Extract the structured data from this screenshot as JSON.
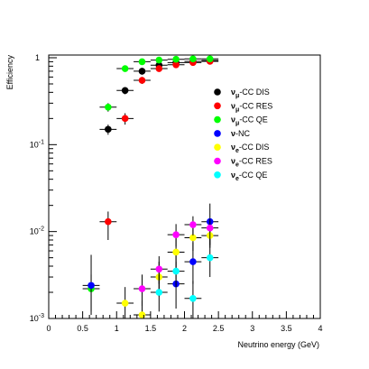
{
  "chart_data": {
    "type": "scatter",
    "title": "",
    "xlabel": "Neutrino energy (GeV)",
    "ylabel": "Efficiency",
    "xlim": [
      0,
      4
    ],
    "ylim": [
      0.001,
      1.3
    ],
    "yscale": "log",
    "grid": false,
    "legend_position": "upper-right",
    "x_ticks": [
      {
        "value": 0,
        "label": "0"
      },
      {
        "value": 0.5,
        "label": "0.5"
      },
      {
        "value": 1,
        "label": "1"
      },
      {
        "value": 1.5,
        "label": "1.5"
      },
      {
        "value": 2,
        "label": "2"
      },
      {
        "value": 2.5,
        "label": "2.5"
      },
      {
        "value": 3,
        "label": "3"
      },
      {
        "value": 3.5,
        "label": "3.5"
      },
      {
        "value": 4,
        "label": "4"
      }
    ],
    "y_ticks": [
      {
        "value": 1,
        "base": "1",
        "exp": ""
      },
      {
        "value": 0.1,
        "base": "10",
        "exp": "-1"
      },
      {
        "value": 0.01,
        "base": "10",
        "exp": "-2"
      },
      {
        "value": 0.001,
        "base": "10",
        "exp": "-3"
      }
    ],
    "series": [
      {
        "name": "ν_μ-CC DIS",
        "label_main": "ν",
        "label_sub": "μ",
        "label_rest": "-CC DIS",
        "color": "#000000",
        "x": [
          0.875,
          1.125,
          1.375,
          1.625,
          1.875,
          2.125,
          2.375
        ],
        "y": [
          0.15,
          0.42,
          0.7,
          0.82,
          0.88,
          0.91,
          0.93
        ],
        "xerr": 0.125,
        "yerr_lo": [
          0.02,
          0.04,
          0.06,
          0.05,
          0.05,
          0.04,
          0.04
        ],
        "yerr_hi": [
          0.02,
          0.04,
          0.06,
          0.05,
          0.05,
          0.04,
          0.04
        ]
      },
      {
        "name": "ν_μ-CC RES",
        "label_main": "ν",
        "label_sub": "μ",
        "label_rest": "-CC RES",
        "color": "#ff0000",
        "x": [
          0.875,
          1.125,
          1.375,
          1.625,
          1.875,
          2.125,
          2.375
        ],
        "y": [
          0.013,
          0.2,
          0.55,
          0.75,
          0.83,
          0.88,
          0.91
        ],
        "xerr": 0.125,
        "yerr_lo": [
          0.005,
          0.03,
          0.05,
          0.05,
          0.05,
          0.04,
          0.04
        ],
        "yerr_hi": [
          0.004,
          0.03,
          0.05,
          0.05,
          0.05,
          0.04,
          0.04
        ]
      },
      {
        "name": "ν_μ-CC QE",
        "label_main": "ν",
        "label_sub": "μ",
        "label_rest": "-CC QE",
        "color": "#00ff00",
        "x": [
          0.625,
          0.875,
          1.125,
          1.375,
          1.625,
          1.875,
          2.125,
          2.375
        ],
        "y": [
          0.0022,
          0.27,
          0.75,
          0.9,
          0.94,
          0.96,
          0.97,
          0.97
        ],
        "xerr": 0.125,
        "yerr_lo": [
          0.001,
          0.03,
          0.05,
          0.04,
          0.03,
          0.03,
          0.03,
          0.03
        ],
        "yerr_hi": [
          0.001,
          0.03,
          0.05,
          0.04,
          0.03,
          0.03,
          0.03,
          0.03
        ]
      },
      {
        "name": "ν-NC",
        "label_main": "ν",
        "label_sub": "",
        "label_rest": "-NC",
        "color": "#0000ff",
        "x": [
          0.625,
          1.875,
          2.125,
          2.375
        ],
        "y": [
          0.0024,
          0.0025,
          0.0045,
          0.013
        ],
        "xerr": 0.125,
        "yerr_lo": [
          0.0013,
          0.0012,
          0.002,
          0.006
        ],
        "yerr_hi": [
          0.003,
          0.002,
          0.003,
          0.008
        ]
      },
      {
        "name": "ν_e-CC DIS",
        "label_main": "ν",
        "label_sub": "e",
        "label_rest": "-CC DIS",
        "color": "#ffff00",
        "x": [
          1.125,
          1.375,
          1.625,
          1.875,
          2.125,
          2.375
        ],
        "y": [
          0.0015,
          0.0011,
          0.003,
          0.0058,
          0.0085,
          0.009
        ],
        "xerr": 0.125,
        "yerr_lo": [
          0.0006,
          0.0004,
          0.0012,
          0.002,
          0.0025,
          0.0025
        ],
        "yerr_hi": [
          0.0008,
          0.0005,
          0.0015,
          0.0025,
          0.003,
          0.003
        ]
      },
      {
        "name": "ν_e-CC RES",
        "label_main": "ν",
        "label_sub": "e",
        "label_rest": "-CC RES",
        "color": "#ff00ff",
        "x": [
          1.375,
          1.625,
          1.875,
          2.125,
          2.375
        ],
        "y": [
          0.0022,
          0.0037,
          0.0092,
          0.012,
          0.011
        ],
        "xerr": 0.125,
        "yerr_lo": [
          0.0008,
          0.0012,
          0.0025,
          0.003,
          0.003
        ],
        "yerr_hi": [
          0.001,
          0.0015,
          0.003,
          0.003,
          0.003
        ]
      },
      {
        "name": "ν_e-CC QE",
        "label_main": "ν",
        "label_sub": "e",
        "label_rest": "-CC QE",
        "color": "#00ffff",
        "x": [
          1.625,
          1.875,
          2.125,
          2.375
        ],
        "y": [
          0.002,
          0.0035,
          0.0017,
          0.005
        ],
        "xerr": 0.125,
        "yerr_lo": [
          0.0008,
          0.0012,
          0.0007,
          0.002
        ],
        "yerr_hi": [
          0.0012,
          0.0018,
          0.001,
          0.003
        ]
      }
    ]
  }
}
